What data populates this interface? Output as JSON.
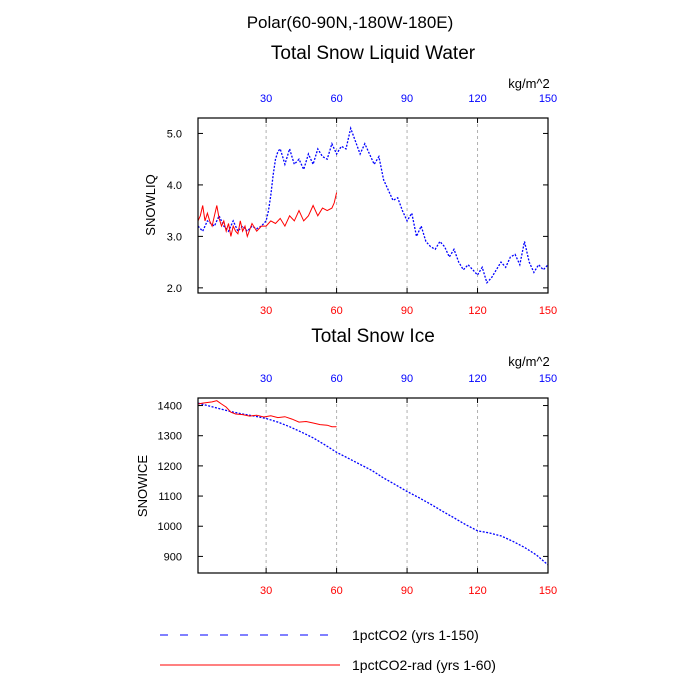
{
  "suptitle": "Polar(60-90N,-180W-180E)",
  "legend": [
    {
      "label": "1pctCO2 (yrs 1-150)",
      "color": "#0000ff",
      "dash": true
    },
    {
      "label": "1pctCO2-rad (yrs 1-60)",
      "color": "#ff0000",
      "dash": false
    }
  ],
  "chart_data": [
    {
      "type": "line",
      "title": "Total Snow Liquid Water",
      "ylabel": "SNOWLIQ",
      "units": "kg/m^2",
      "xlim": [
        1,
        150
      ],
      "ylim": [
        1.9,
        5.3
      ],
      "yticks": [
        "2.0",
        "3.0",
        "4.0",
        "5.0"
      ],
      "xticks_bottom": [
        "30",
        "60",
        "90",
        "120",
        "150"
      ],
      "xticks_top": [
        "30",
        "60",
        "90",
        "120",
        "150"
      ],
      "grid": "vertical dashed at 30, 60, 90, 120",
      "series": [
        {
          "name": "1pctCO2 (yrs 1-150)",
          "color": "#0000ff",
          "x": [
            1,
            3,
            5,
            8,
            10,
            12,
            14,
            16,
            18,
            20,
            22,
            24,
            26,
            28,
            30,
            31,
            32,
            33,
            34,
            35,
            36,
            37,
            38,
            40,
            42,
            44,
            46,
            48,
            50,
            52,
            54,
            56,
            58,
            60,
            62,
            64,
            66,
            68,
            70,
            72,
            74,
            76,
            78,
            80,
            82,
            84,
            86,
            88,
            90,
            92,
            94,
            96,
            98,
            100,
            102,
            104,
            106,
            108,
            110,
            112,
            114,
            116,
            118,
            120,
            122,
            124,
            126,
            128,
            130,
            132,
            134,
            136,
            138,
            140,
            142,
            144,
            146,
            148,
            150
          ],
          "y": [
            3.2,
            3.1,
            3.3,
            3.2,
            3.4,
            3.2,
            3.1,
            3.3,
            3.1,
            3.2,
            3.1,
            3.2,
            3.15,
            3.2,
            3.3,
            3.5,
            3.8,
            4.2,
            4.5,
            4.65,
            4.7,
            4.55,
            4.4,
            4.7,
            4.4,
            4.5,
            4.3,
            4.6,
            4.4,
            4.7,
            4.55,
            4.5,
            4.8,
            4.6,
            4.75,
            4.7,
            5.1,
            4.85,
            4.6,
            4.8,
            4.6,
            4.4,
            4.55,
            4.1,
            3.9,
            3.7,
            3.75,
            3.5,
            3.3,
            3.45,
            3.0,
            3.2,
            2.9,
            2.8,
            2.75,
            2.9,
            2.8,
            2.6,
            2.75,
            2.5,
            2.35,
            2.45,
            2.35,
            2.25,
            2.4,
            2.1,
            2.2,
            2.35,
            2.5,
            2.4,
            2.6,
            2.65,
            2.45,
            2.9,
            2.5,
            2.3,
            2.45,
            2.35,
            2.45
          ]
        },
        {
          "name": "1pctCO2-rad (yrs 1-60)",
          "color": "#ff0000",
          "x": [
            1,
            2,
            3,
            4,
            5,
            6,
            7,
            8,
            9,
            10,
            11,
            12,
            13,
            14,
            15,
            16,
            17,
            18,
            19,
            20,
            21,
            22,
            24,
            26,
            28,
            30,
            32,
            34,
            36,
            38,
            40,
            42,
            44,
            46,
            48,
            50,
            52,
            54,
            56,
            58,
            59,
            60
          ],
          "y": [
            3.3,
            3.4,
            3.6,
            3.3,
            3.45,
            3.3,
            3.2,
            3.4,
            3.6,
            3.35,
            3.2,
            3.3,
            3.1,
            3.25,
            3.0,
            3.2,
            3.1,
            3.05,
            3.3,
            3.1,
            3.2,
            3.0,
            3.25,
            3.1,
            3.2,
            3.2,
            3.3,
            3.25,
            3.35,
            3.2,
            3.4,
            3.3,
            3.5,
            3.3,
            3.4,
            3.6,
            3.4,
            3.55,
            3.5,
            3.55,
            3.65,
            3.85
          ]
        }
      ]
    },
    {
      "type": "line",
      "title": "Total Snow Ice",
      "ylabel": "SNOWICE",
      "units": "kg/m^2",
      "xlim": [
        1,
        150
      ],
      "ylim": [
        845,
        1425
      ],
      "yticks": [
        "900",
        "1000",
        "1100",
        "1200",
        "1300",
        "1400"
      ],
      "xticks_bottom": [
        "30",
        "60",
        "90",
        "120",
        "150"
      ],
      "xticks_top": [
        "30",
        "60",
        "90",
        "120",
        "150"
      ],
      "grid": "vertical dashed at 30, 60, 90, 120",
      "series": [
        {
          "name": "1pctCO2 (yrs 1-150)",
          "color": "#0000ff",
          "x": [
            1,
            5,
            10,
            15,
            20,
            25,
            30,
            35,
            40,
            45,
            50,
            55,
            60,
            65,
            70,
            75,
            80,
            85,
            90,
            95,
            100,
            105,
            110,
            115,
            120,
            125,
            130,
            135,
            140,
            145,
            150
          ],
          "y": [
            1408,
            1400,
            1390,
            1380,
            1372,
            1365,
            1357,
            1345,
            1330,
            1312,
            1293,
            1270,
            1245,
            1225,
            1205,
            1185,
            1160,
            1138,
            1115,
            1095,
            1073,
            1050,
            1028,
            1005,
            985,
            978,
            968,
            950,
            930,
            905,
            872
          ]
        },
        {
          "name": "1pctCO2-rad (yrs 1-60)",
          "color": "#ff0000",
          "x": [
            1,
            3,
            5,
            7,
            9,
            11,
            13,
            15,
            17,
            20,
            23,
            26,
            29,
            32,
            35,
            38,
            41,
            44,
            47,
            50,
            53,
            56,
            58,
            60
          ],
          "y": [
            1405,
            1408,
            1410,
            1412,
            1416,
            1405,
            1395,
            1378,
            1372,
            1370,
            1365,
            1368,
            1362,
            1366,
            1360,
            1363,
            1355,
            1345,
            1347,
            1342,
            1337,
            1335,
            1330,
            1330
          ]
        }
      ]
    }
  ]
}
